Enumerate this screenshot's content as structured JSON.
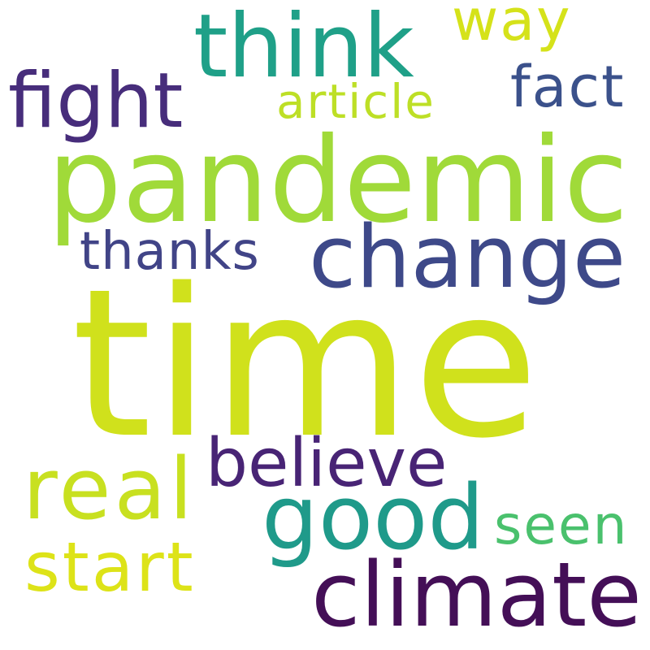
{
  "cloud": {
    "words": {
      "time": {
        "text": "time",
        "color": "#d0e11c"
      },
      "pandemic": {
        "text": "pandemic",
        "color": "#a0da39"
      },
      "think": {
        "text": "think",
        "color": "#1fa088"
      },
      "change": {
        "text": "change",
        "color": "#3e4989"
      },
      "climate": {
        "text": "climate",
        "color": "#440f57"
      },
      "good": {
        "text": "good",
        "color": "#1f9a8a"
      },
      "real": {
        "text": "real",
        "color": "#c8e020"
      },
      "fight": {
        "text": "fight",
        "color": "#472d7b"
      },
      "believe": {
        "text": "believe",
        "color": "#482475"
      },
      "start": {
        "text": "start",
        "color": "#dde318"
      },
      "fact": {
        "text": "fact",
        "color": "#3b518b"
      },
      "way": {
        "text": "way",
        "color": "#d5e21a"
      },
      "article": {
        "text": "article",
        "color": "#bddf26"
      },
      "thanks": {
        "text": "thanks",
        "color": "#414487"
      },
      "seen": {
        "text": "seen",
        "color": "#4ac16d"
      }
    }
  }
}
